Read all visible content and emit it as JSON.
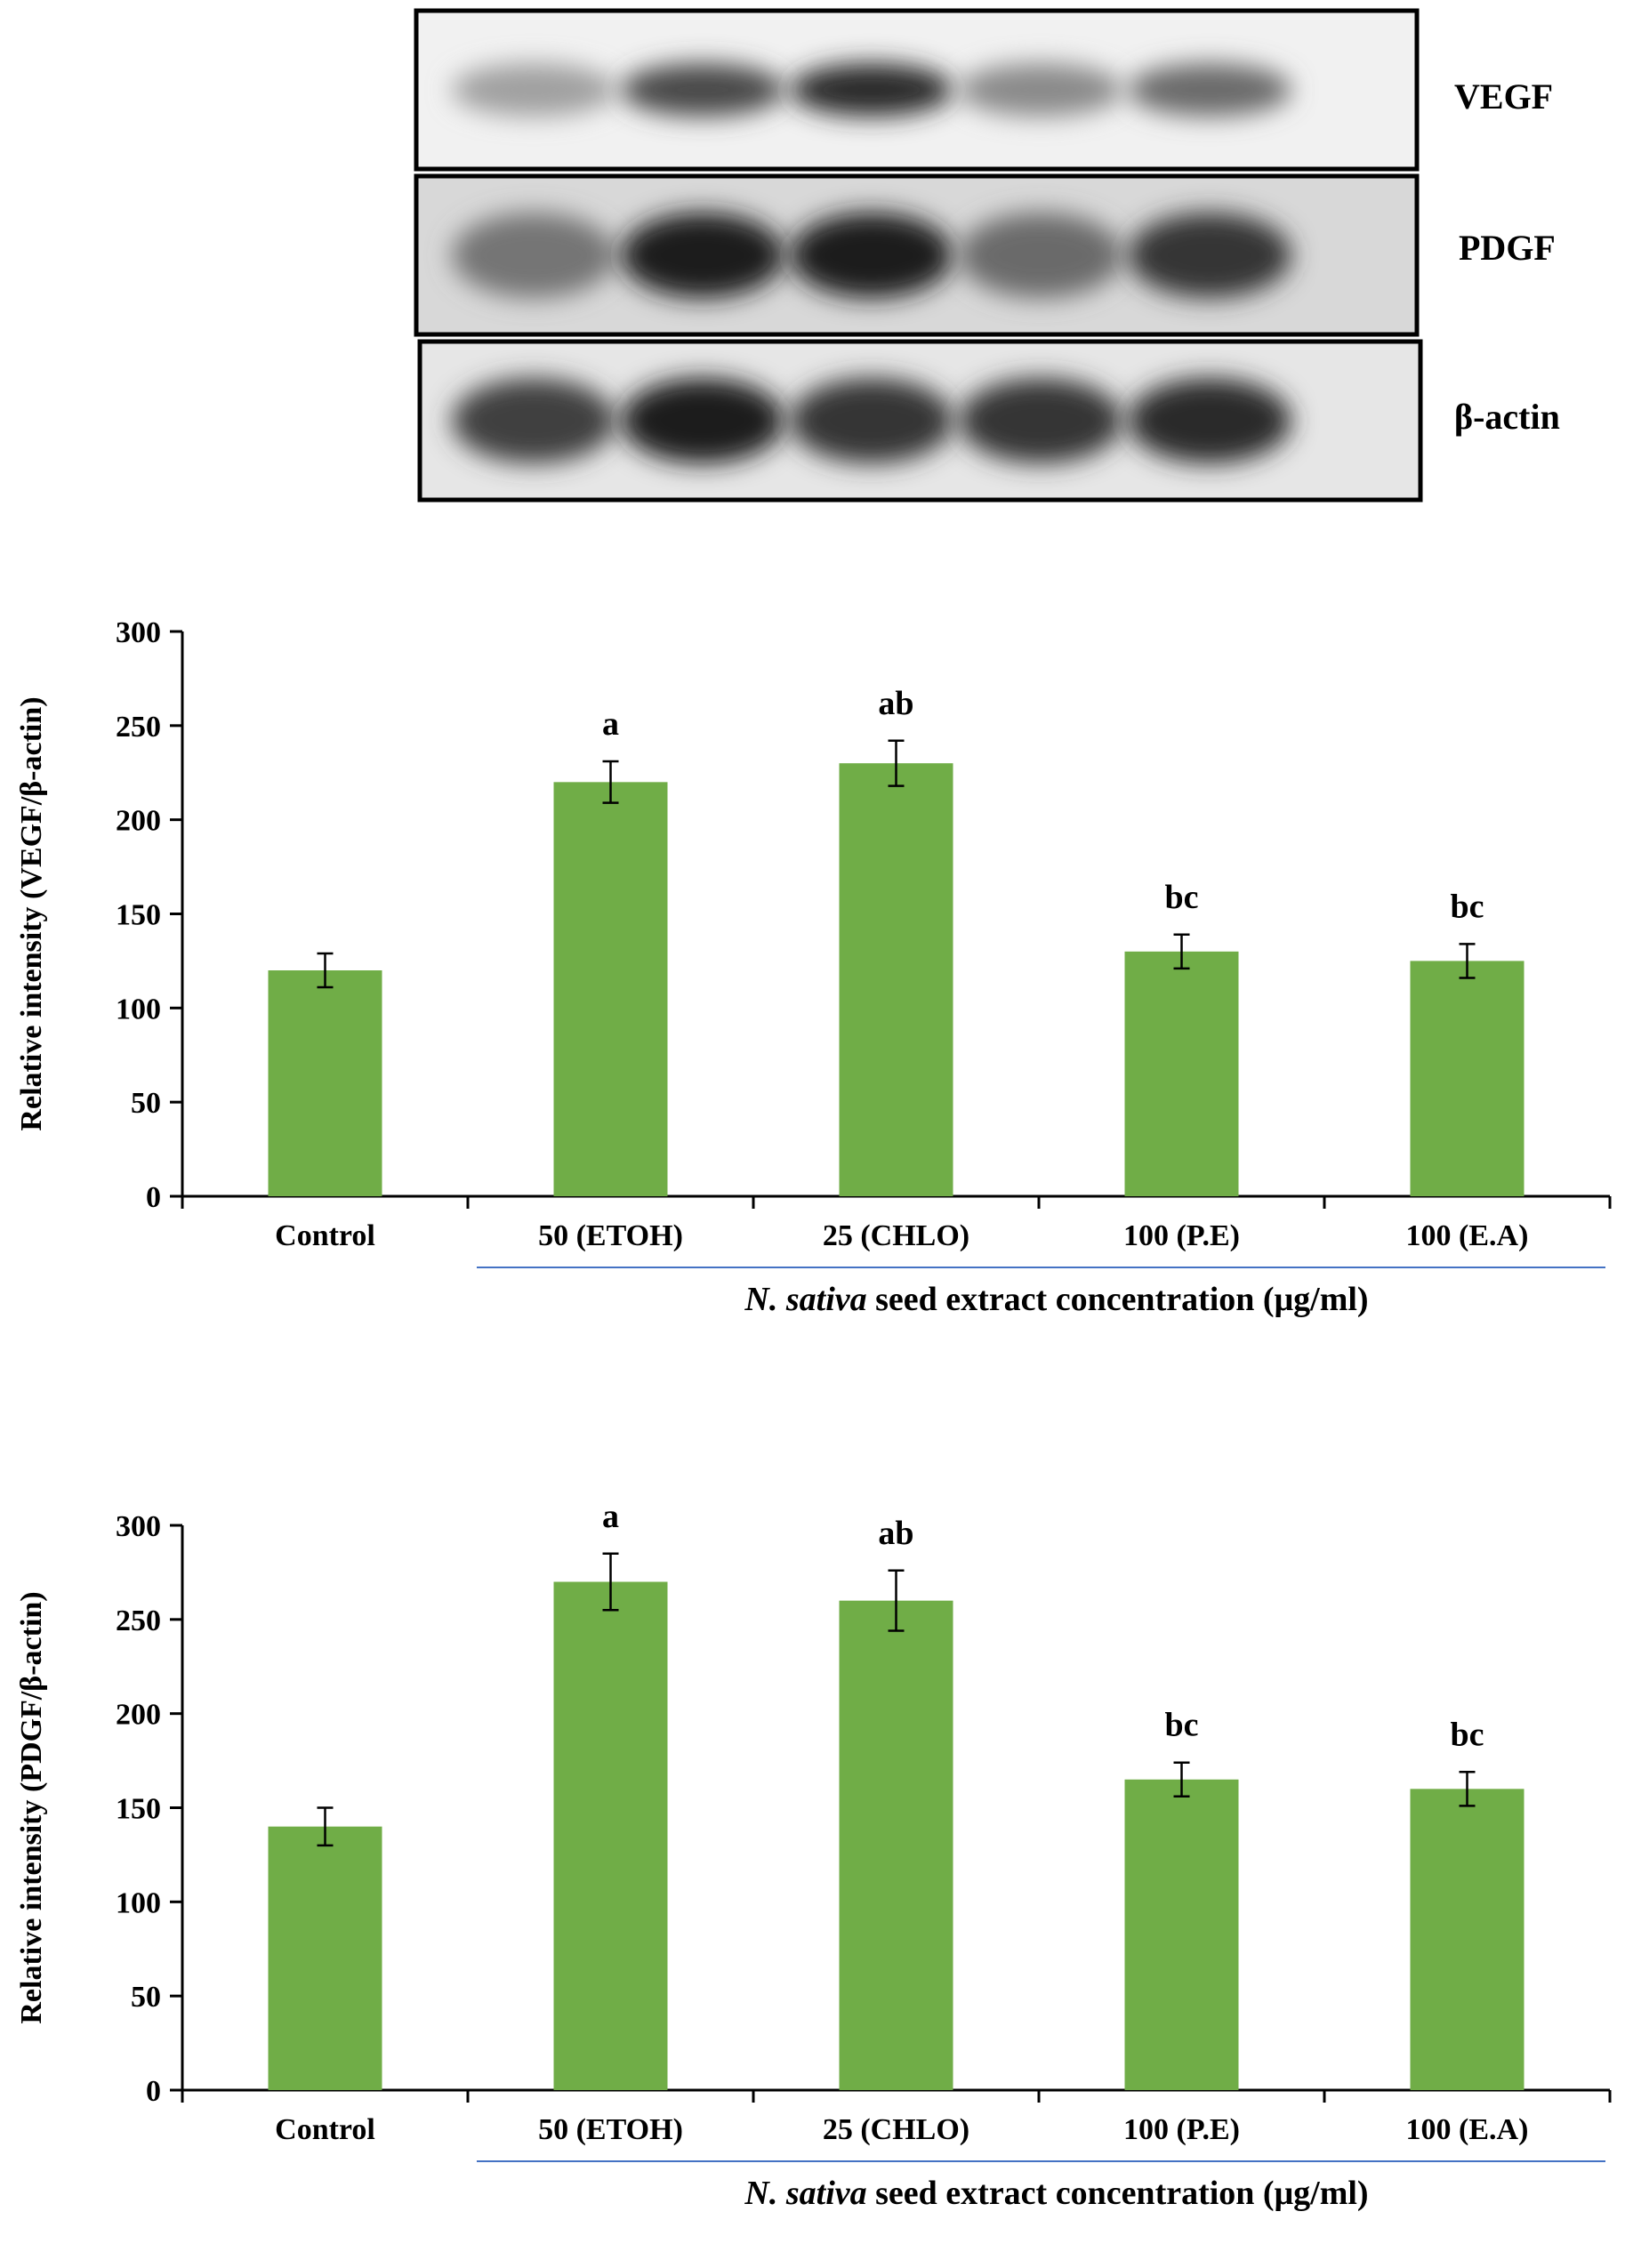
{
  "blot": {
    "lane_count": 5,
    "rows": [
      {
        "label": "VEGF",
        "band_intensity": [
          0.35,
          0.75,
          0.9,
          0.45,
          0.6
        ]
      },
      {
        "label": "PDGF",
        "band_intensity": [
          0.55,
          0.95,
          0.95,
          0.6,
          0.85
        ]
      },
      {
        "label": "β-actin",
        "band_intensity": [
          0.8,
          0.95,
          0.85,
          0.85,
          0.9
        ]
      }
    ]
  },
  "colors": {
    "bar": "#70AD47",
    "axis": "#000000",
    "group_line": "#4472C4"
  },
  "chart_data": [
    {
      "type": "bar",
      "categories": [
        "Control",
        "50 (ETOH)",
        "25 (CHLO)",
        "100 (P.E)",
        "100 (E.A)"
      ],
      "values": [
        120,
        220,
        230,
        130,
        125
      ],
      "errors": [
        9,
        11,
        12,
        9,
        9
      ],
      "significance_labels": [
        "",
        "a",
        "ab",
        "bc",
        "bc"
      ],
      "ylabel": "Relative intensity (VEGF/β-actin)",
      "xlabel_italic": "N. sativa",
      "xlabel_rest": " seed extract concentration (μg/ml)",
      "ylim": [
        0,
        300
      ],
      "yticks": [
        0,
        50,
        100,
        150,
        200,
        250,
        300
      ],
      "grid": false
    },
    {
      "type": "bar",
      "categories": [
        "Control",
        "50 (ETOH)",
        "25 (CHLO)",
        "100 (P.E)",
        "100 (E.A)"
      ],
      "values": [
        140,
        270,
        260,
        165,
        160
      ],
      "errors": [
        10,
        15,
        16,
        9,
        9
      ],
      "significance_labels": [
        "",
        "a",
        "ab",
        "bc",
        "bc"
      ],
      "ylabel": "Relative intensity (PDGF/β-actin)",
      "xlabel_italic": "N. sativa",
      "xlabel_rest": " seed extract concentration (μg/ml)",
      "ylim": [
        0,
        300
      ],
      "yticks": [
        0,
        50,
        100,
        150,
        200,
        250,
        300
      ],
      "grid": false
    }
  ]
}
